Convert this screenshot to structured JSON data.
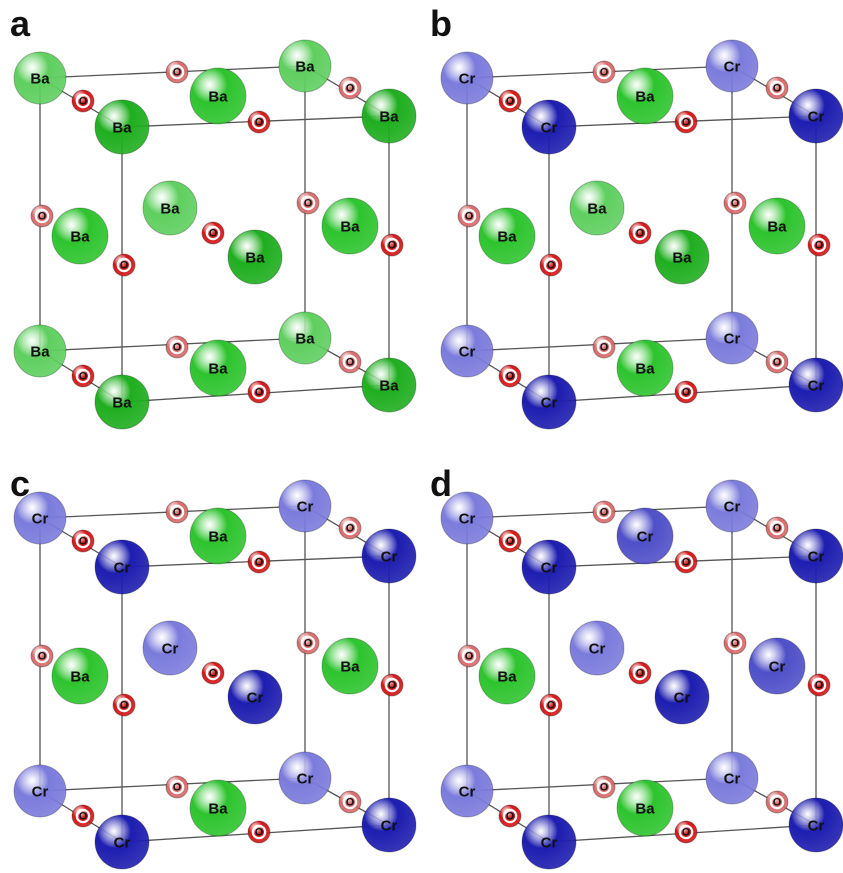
{
  "figure": {
    "panels": [
      {
        "letter": "a",
        "atoms": [
          {
            "el": "Ba",
            "tone": "light"
          },
          {
            "el": "Ba",
            "tone": "light"
          },
          {
            "el": "Ba",
            "tone": "light"
          },
          {
            "el": "Ba",
            "tone": "light"
          },
          {
            "el": "Ba",
            "tone": "dark"
          },
          {
            "el": "Ba",
            "tone": "dark"
          },
          {
            "el": "Ba",
            "tone": "dark"
          },
          {
            "el": "Ba",
            "tone": "dark"
          },
          {
            "el": "Ba",
            "tone": "mid"
          },
          {
            "el": "Ba",
            "tone": "mid"
          },
          {
            "el": "Ba",
            "tone": "mid"
          },
          {
            "el": "Ba",
            "tone": "mid"
          },
          {
            "el": "Ba",
            "tone": "light"
          },
          {
            "el": "Ba",
            "tone": "dark"
          }
        ]
      },
      {
        "letter": "b",
        "atoms": [
          {
            "el": "Cr",
            "tone": "light"
          },
          {
            "el": "Cr",
            "tone": "light"
          },
          {
            "el": "Cr",
            "tone": "light"
          },
          {
            "el": "Cr",
            "tone": "light"
          },
          {
            "el": "Cr",
            "tone": "dark"
          },
          {
            "el": "Cr",
            "tone": "dark"
          },
          {
            "el": "Cr",
            "tone": "dark"
          },
          {
            "el": "Cr",
            "tone": "dark"
          },
          {
            "el": "Ba",
            "tone": "mid"
          },
          {
            "el": "Ba",
            "tone": "mid"
          },
          {
            "el": "Ba",
            "tone": "mid"
          },
          {
            "el": "Ba",
            "tone": "mid"
          },
          {
            "el": "Ba",
            "tone": "light"
          },
          {
            "el": "Ba",
            "tone": "dark"
          }
        ]
      },
      {
        "letter": "c",
        "atoms": [
          {
            "el": "Cr",
            "tone": "light"
          },
          {
            "el": "Cr",
            "tone": "light"
          },
          {
            "el": "Cr",
            "tone": "light"
          },
          {
            "el": "Cr",
            "tone": "light"
          },
          {
            "el": "Cr",
            "tone": "dark"
          },
          {
            "el": "Cr",
            "tone": "dark"
          },
          {
            "el": "Cr",
            "tone": "dark"
          },
          {
            "el": "Cr",
            "tone": "dark"
          },
          {
            "el": "Ba",
            "tone": "mid"
          },
          {
            "el": "Ba",
            "tone": "mid"
          },
          {
            "el": "Ba",
            "tone": "mid"
          },
          {
            "el": "Ba",
            "tone": "mid"
          },
          {
            "el": "Cr",
            "tone": "light"
          },
          {
            "el": "Cr",
            "tone": "dark"
          }
        ]
      },
      {
        "letter": "d",
        "atoms": [
          {
            "el": "Cr",
            "tone": "light"
          },
          {
            "el": "Cr",
            "tone": "light"
          },
          {
            "el": "Cr",
            "tone": "light"
          },
          {
            "el": "Cr",
            "tone": "light"
          },
          {
            "el": "Cr",
            "tone": "dark"
          },
          {
            "el": "Cr",
            "tone": "dark"
          },
          {
            "el": "Cr",
            "tone": "dark"
          },
          {
            "el": "Cr",
            "tone": "dark"
          },
          {
            "el": "Cr",
            "tone": "mid"
          },
          {
            "el": "Ba",
            "tone": "mid"
          },
          {
            "el": "Ba",
            "tone": "mid"
          },
          {
            "el": "Cr",
            "tone": "mid"
          },
          {
            "el": "Cr",
            "tone": "light"
          },
          {
            "el": "Cr",
            "tone": "dark"
          }
        ]
      }
    ],
    "oxygen_label": "O"
  },
  "colors": {
    "Ba_light": "#5fcf5f",
    "Ba_mid": "#2ec42e",
    "Ba_dark": "#1fae1f",
    "Cr_light": "#7b7bdc",
    "Cr_mid": "#4f4fc8",
    "Cr_dark": "#1d1db0",
    "O_light": "#d86a6a",
    "O_dark": "#d41818",
    "bond": "#555555"
  }
}
